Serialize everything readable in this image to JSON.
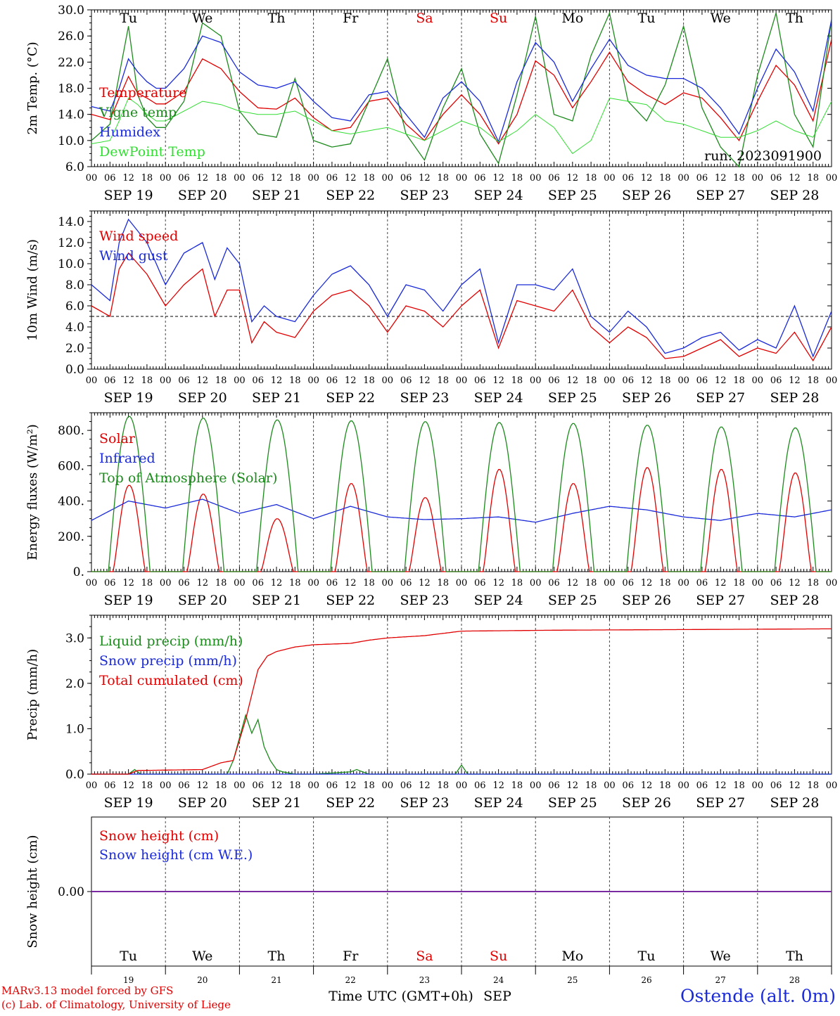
{
  "days": {
    "names": [
      "Tu",
      "We",
      "Th",
      "Fr",
      "Sa",
      "Su",
      "Mo",
      "Tu",
      "We",
      "Th"
    ],
    "weekend_flags": [
      false,
      false,
      false,
      false,
      true,
      true,
      false,
      false,
      false,
      false
    ],
    "date_labels": [
      "SEP 19",
      "SEP 20",
      "SEP 21",
      "SEP 22",
      "SEP 23",
      "SEP 24",
      "SEP 25",
      "SEP 26",
      "SEP 27",
      "SEP 28"
    ],
    "day_numbers": [
      "19",
      "20",
      "21",
      "22",
      "23",
      "24",
      "25",
      "26",
      "27",
      "28"
    ],
    "hour_ticks": [
      "00",
      "06",
      "12",
      "18"
    ],
    "final_tick": "00"
  },
  "colors": {
    "temperature": "#e00000",
    "vigne_temp": "#1d8a1d",
    "humidex": "#1a2ad8",
    "dewpoint": "#33dd33",
    "weekend": "#e00000",
    "snow_line": "#7a2aa0"
  },
  "chart_data": [
    {
      "id": "temperature_panel",
      "type": "line",
      "ylabel": "2m Temp. (°C)",
      "ylim": [
        6.0,
        30.0
      ],
      "yticks": [
        "6.0",
        "10.0",
        "14.0",
        "18.0",
        "22.0",
        "26.0",
        "30.0"
      ],
      "annotation": "run: 2023091900",
      "x_hours": [
        0,
        6,
        9,
        12,
        15,
        18,
        21,
        24,
        30,
        36,
        42,
        48,
        54,
        60,
        66,
        72,
        78,
        84,
        90,
        96,
        102,
        108,
        114,
        120,
        126,
        132,
        138,
        144,
        150,
        156,
        162,
        168,
        174,
        180,
        186,
        192,
        198,
        204,
        210,
        216,
        222,
        228,
        234,
        240
      ],
      "series": [
        {
          "name": "Temperature",
          "color": "#e00000",
          "values": [
            14.0,
            13.2,
            16.5,
            19.8,
            17.2,
            16.5,
            15.6,
            15.6,
            17.5,
            22.5,
            21.0,
            17.5,
            15.0,
            14.8,
            16.5,
            13.5,
            11.5,
            12.0,
            16.0,
            16.5,
            12.5,
            10.0,
            14.0,
            17.0,
            14.0,
            9.5,
            14.0,
            22.2,
            20.0,
            15.0,
            19.0,
            23.5,
            19.0,
            17.0,
            15.5,
            17.3,
            16.5,
            13.5,
            10.0,
            16.0,
            21.5,
            18.5,
            13.0,
            25.5
          ]
        },
        {
          "name": "Vigne temp",
          "color": "#1d8a1d",
          "values": [
            10.0,
            12.5,
            20.0,
            27.5,
            17.0,
            13.5,
            12.0,
            12.0,
            16.0,
            28.0,
            26.0,
            14.5,
            11.0,
            10.5,
            19.5,
            10.0,
            9.0,
            9.5,
            16.0,
            22.5,
            11.0,
            7.0,
            15.0,
            21.0,
            11.0,
            6.5,
            17.0,
            29.0,
            14.0,
            13.0,
            23.0,
            29.5,
            16.0,
            13.0,
            18.5,
            27.5,
            15.0,
            9.0,
            6.0,
            20.0,
            29.5,
            14.0,
            9.0,
            28.5
          ]
        },
        {
          "name": "Humidex",
          "color": "#1a2ad8",
          "values": [
            15.2,
            14.5,
            18.0,
            22.5,
            20.5,
            19.0,
            18.0,
            18.0,
            21.0,
            26.0,
            25.0,
            20.5,
            18.5,
            18.0,
            19.0,
            16.0,
            13.5,
            13.0,
            17.0,
            17.5,
            14.0,
            10.5,
            16.5,
            19.0,
            16.0,
            9.8,
            19.0,
            25.0,
            22.0,
            16.0,
            21.0,
            25.5,
            21.5,
            20.0,
            19.5,
            19.5,
            18.0,
            15.0,
            11.0,
            18.0,
            24.0,
            20.5,
            14.5,
            28.5
          ]
        },
        {
          "name": "DewPoint Temp",
          "color": "#33dd33",
          "values": [
            9.5,
            10.0,
            13.0,
            16.5,
            15.5,
            14.0,
            13.0,
            13.0,
            14.5,
            16.0,
            15.5,
            14.5,
            14.0,
            14.0,
            14.5,
            13.0,
            11.5,
            11.0,
            11.5,
            12.0,
            11.0,
            10.0,
            11.5,
            13.0,
            12.0,
            9.8,
            11.5,
            14.0,
            12.0,
            8.0,
            10.0,
            16.5,
            16.0,
            15.5,
            13.0,
            12.5,
            11.5,
            10.5,
            10.5,
            11.5,
            13.0,
            11.5,
            10.5,
            16.0
          ]
        }
      ]
    },
    {
      "id": "wind_panel",
      "type": "line",
      "ylabel": "10m Wind (m/s)",
      "ylim": [
        0.0,
        15.0
      ],
      "yticks": [
        "0.0",
        "2.0",
        "4.0",
        "6.0",
        "8.0",
        "10.0",
        "12.0",
        "14.0"
      ],
      "reference_line": 5.0,
      "x_hours": [
        0,
        6,
        9,
        12,
        18,
        24,
        30,
        36,
        40,
        44,
        48,
        52,
        56,
        60,
        66,
        72,
        78,
        84,
        90,
        96,
        102,
        108,
        114,
        120,
        126,
        132,
        138,
        144,
        150,
        156,
        162,
        168,
        174,
        180,
        186,
        192,
        198,
        204,
        210,
        216,
        222,
        228,
        234,
        240
      ],
      "series": [
        {
          "name": "Wind speed",
          "color": "#e00000",
          "values": [
            6.0,
            5.0,
            9.5,
            11.0,
            9.0,
            6.0,
            8.0,
            9.5,
            5.0,
            7.5,
            7.5,
            2.5,
            4.5,
            3.5,
            3.0,
            5.5,
            7.0,
            7.5,
            6.0,
            3.5,
            6.0,
            5.5,
            4.0,
            6.0,
            7.5,
            2.0,
            6.5,
            6.0,
            5.5,
            7.5,
            4.0,
            2.5,
            4.0,
            3.0,
            1.0,
            1.2,
            2.0,
            2.8,
            1.2,
            2.0,
            1.5,
            3.5,
            0.8,
            4.0
          ]
        },
        {
          "name": "Wind gust",
          "color": "#1a2ad8",
          "values": [
            8.0,
            6.5,
            12.0,
            14.2,
            12.0,
            8.0,
            11.0,
            12.0,
            8.5,
            11.5,
            10.0,
            4.5,
            6.0,
            5.0,
            4.5,
            7.0,
            9.0,
            9.8,
            8.0,
            5.0,
            8.0,
            7.5,
            5.5,
            8.0,
            9.5,
            2.5,
            8.0,
            8.0,
            7.5,
            9.5,
            5.0,
            3.5,
            5.5,
            4.0,
            1.5,
            2.0,
            3.0,
            3.5,
            1.8,
            2.8,
            2.0,
            6.0,
            1.2,
            5.5
          ]
        }
      ]
    },
    {
      "id": "energy_panel",
      "type": "line",
      "ylabel": "Energy fluxes (W/m²)",
      "ylim": [
        0,
        900
      ],
      "yticks": [
        "0.",
        "200.",
        "400.",
        "600.",
        "800."
      ],
      "series": [
        {
          "name": "Solar",
          "color": "#e00000",
          "day_peaks": [
            490,
            440,
            300,
            500,
            420,
            580,
            500,
            590,
            580,
            560
          ]
        },
        {
          "name": "Infrared",
          "color": "#1a2ad8",
          "x_hours": [
            0,
            12,
            24,
            36,
            48,
            60,
            72,
            84,
            96,
            108,
            120,
            132,
            144,
            156,
            168,
            180,
            192,
            204,
            216,
            228,
            240
          ],
          "values": [
            290,
            400,
            360,
            410,
            330,
            380,
            300,
            370,
            310,
            295,
            300,
            310,
            280,
            330,
            370,
            350,
            310,
            290,
            330,
            310,
            350
          ]
        },
        {
          "name": "Top of Atmosphere (Solar)",
          "color": "#1d8a1d",
          "day_peaks": [
            880,
            870,
            860,
            855,
            850,
            845,
            840,
            830,
            820,
            815
          ]
        }
      ]
    },
    {
      "id": "precip_panel",
      "type": "line",
      "ylabel": "Precip (mm/h)",
      "ylim": [
        0.0,
        3.5
      ],
      "yticks": [
        "0.0",
        "1.0",
        "2.0",
        "3.0"
      ],
      "series": [
        {
          "name": "Liquid precip (mm/h)",
          "color": "#1d8a1d",
          "x_hours": [
            0,
            12,
            14,
            16,
            24,
            36,
            44,
            46,
            48,
            50,
            52,
            54,
            56,
            58,
            60,
            62,
            66,
            72,
            84,
            86,
            90,
            96,
            108,
            118,
            120,
            122,
            240
          ],
          "values": [
            0,
            0,
            0.1,
            0,
            0,
            0,
            0,
            0.3,
            0.8,
            1.3,
            0.9,
            1.2,
            0.6,
            0.3,
            0.1,
            0.05,
            0,
            0,
            0.05,
            0.1,
            0,
            0,
            0,
            0,
            0.2,
            0,
            0
          ]
        },
        {
          "name": "Snow precip (mm/h)",
          "color": "#1a2ad8",
          "x_hours": [
            0,
            240
          ],
          "values": [
            0,
            0
          ]
        },
        {
          "name": "Total cumulated (cm)",
          "color": "#e00000",
          "x_hours": [
            0,
            12,
            15,
            36,
            42,
            46,
            50,
            54,
            57,
            60,
            66,
            72,
            84,
            90,
            96,
            108,
            114,
            120,
            150,
            180,
            240
          ],
          "values": [
            0,
            0,
            0.08,
            0.1,
            0.25,
            0.3,
            1.2,
            2.3,
            2.6,
            2.7,
            2.8,
            2.85,
            2.88,
            2.95,
            3.0,
            3.05,
            3.1,
            3.15,
            3.17,
            3.18,
            3.2
          ]
        }
      ]
    },
    {
      "id": "snow_panel",
      "type": "line",
      "ylabel": "Snow height (cm)",
      "ylim": [
        -1,
        1
      ],
      "yticks": [
        "0.00"
      ],
      "series": [
        {
          "name": "Snow height (cm)",
          "color": "#e00000",
          "x_hours": [
            0,
            240
          ],
          "values": [
            0,
            0
          ]
        },
        {
          "name": "Snow height (cm W.E.)",
          "color": "#1a2ad8",
          "x_hours": [
            0,
            240
          ],
          "values": [
            0,
            0
          ]
        }
      ]
    }
  ],
  "footer": {
    "model_credit": "MARv3.13 model forced by GFS",
    "lab_credit": "(c) Lab. of Climatology, University of Liege",
    "axis_title": "Time UTC (GMT+0h)",
    "month": "SEP",
    "station": "Ostende (alt. 0m)"
  }
}
